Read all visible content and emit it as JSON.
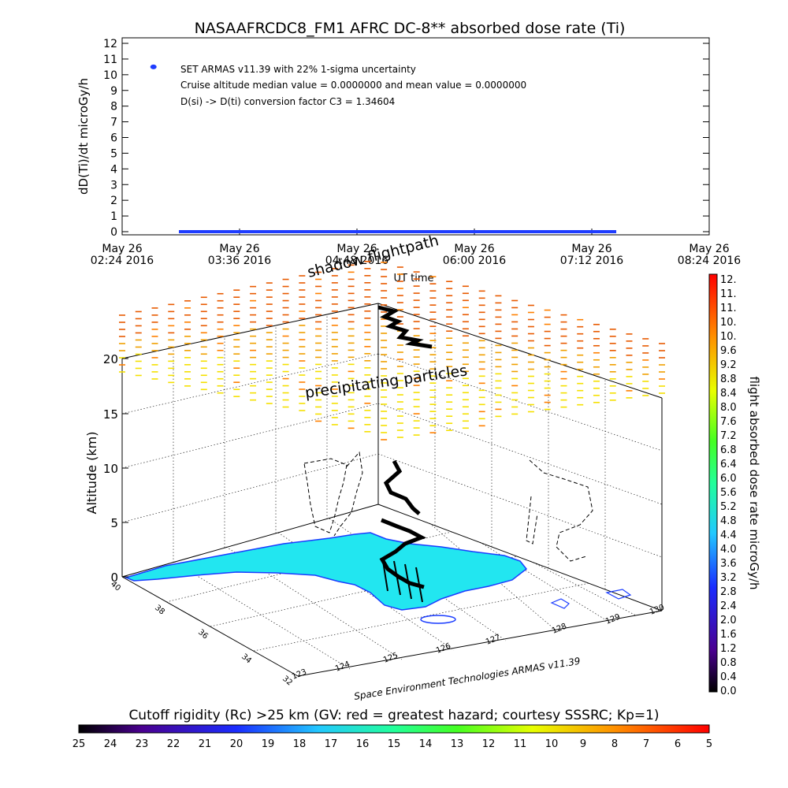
{
  "chart_data": [
    {
      "type": "line",
      "title": "NASAAFRCDC8_FM1 AFRC DC-8** absorbed dose rate (Ti)",
      "ylabel": "dD(Ti)/dt microGy/h",
      "xlabel": "UT time",
      "ylim": [
        0,
        12
      ],
      "yticks": [
        "0",
        "1",
        "2",
        "3",
        "4",
        "5",
        "6",
        "7",
        "8",
        "9",
        "10",
        "11",
        "12"
      ],
      "xticks": [
        {
          "line1": "May 26",
          "line2": "02:24 2016"
        },
        {
          "line1": "May 26",
          "line2": "03:36 2016"
        },
        {
          "line1": "May 26",
          "line2": "04:48 2016"
        },
        {
          "line1": "May 26",
          "line2": "06:00 2016"
        },
        {
          "line1": "May 26",
          "line2": "07:12 2016"
        },
        {
          "line1": "May 26",
          "line2": "08:24 2016"
        }
      ],
      "xrange_hours": [
        2.4,
        8.4
      ],
      "series_color": "#1e3cff",
      "series": [
        {
          "x_start_hours": 2.98,
          "x_end_hours": 7.45,
          "value": 0.0
        }
      ],
      "marker_point": {
        "x_hours": 2.72,
        "y": 10.5
      },
      "annotations": [
        "SET ARMAS v11.39 with 22% 1-sigma uncertainty",
        "Cruise altitude median value = 0.0000000 and mean value = 0.0000000",
        "D(si) -> D(ti) conversion factor C3 = 1.34604"
      ]
    },
    {
      "type": "scatter",
      "zlabel": "Altitude (km)",
      "zticks": [
        "0",
        "5",
        "10",
        "15",
        "20"
      ],
      "lat_ticks": [
        "40",
        "38",
        "36",
        "34",
        "32"
      ],
      "lon_ticks": [
        "123",
        "124",
        "125",
        "126",
        "127",
        "128",
        "129",
        "130"
      ],
      "annotations": [
        "shadow flightpath",
        "precipitating particles"
      ],
      "credit": "Space Environment Technologies ARMAS v11.39"
    },
    {
      "type": "heatmap",
      "title": "flight absorbed dose rate microGy/h",
      "ticks": [
        "0.0",
        "0.4",
        "0.8",
        "1.2",
        "1.6",
        "2.0",
        "2.4",
        "2.8",
        "3.2",
        "3.6",
        "4.0",
        "4.4",
        "4.8",
        "5.2",
        "5.6",
        "6.0",
        "6.4",
        "6.8",
        "7.2",
        "7.6",
        "8.0",
        "8.4",
        "8.8",
        "9.2",
        "9.6",
        "10.",
        "10.",
        "11.",
        "11.",
        "12."
      ]
    },
    {
      "type": "heatmap",
      "title": "Cutoff rigidity (Rc) >25 km (GV: red = greatest hazard; courtesy SSSRC; Kp=1)",
      "ticks": [
        "25",
        "24",
        "23",
        "22",
        "21",
        "20",
        "19",
        "18",
        "17",
        "16",
        "15",
        "14",
        "13",
        "12",
        "11",
        "10",
        "9",
        "8",
        "7",
        "6",
        "5"
      ]
    }
  ]
}
